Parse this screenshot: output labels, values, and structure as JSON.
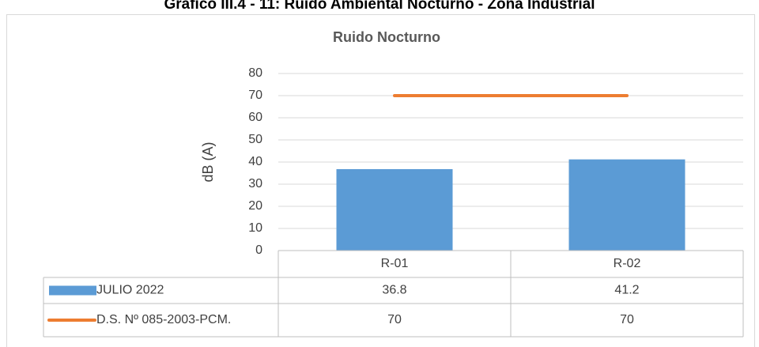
{
  "chart_data": {
    "type": "bar",
    "caption": "Gráfico III.4 - 11: Ruido Ambiental Nocturno - Zona Industrial",
    "title": "Ruido Nocturno",
    "ylabel": "dB (A)",
    "categories": [
      "R-01",
      "R-02"
    ],
    "series": [
      {
        "name": "JULIO 2022",
        "type": "bar",
        "color": "#5b9bd5",
        "values": [
          36.8,
          41.2
        ]
      },
      {
        "name": "D.S. Nº 085-2003-PCM.",
        "type": "line",
        "color": "#ed7d31",
        "values": [
          70,
          70
        ]
      }
    ],
    "ylim": [
      0,
      80
    ],
    "yticks": [
      0,
      10,
      20,
      30,
      40,
      50,
      60,
      70,
      80
    ],
    "grid": true,
    "data_table": true
  }
}
